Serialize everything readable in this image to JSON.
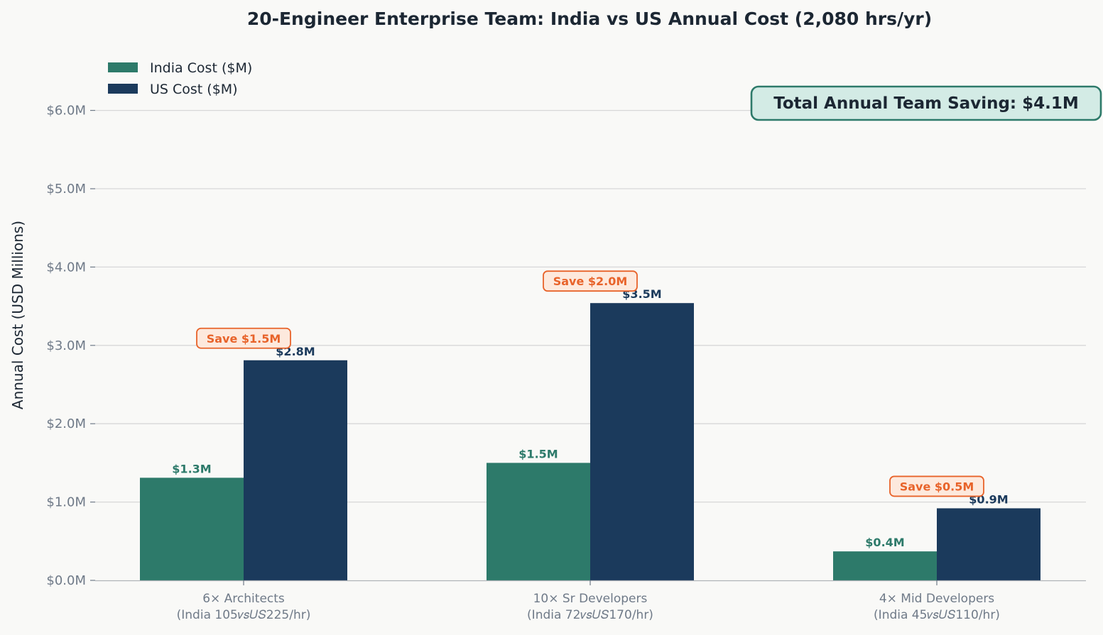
{
  "chart_data": {
    "type": "bar",
    "title": "20-Engineer Enterprise Team: India vs US Annual Cost (2,080 hrs/yr)",
    "ylabel": "Annual Cost (USD Millions)",
    "xlabel": "",
    "ylim": [
      0,
      6.5
    ],
    "yticks": [
      0,
      1,
      2,
      3,
      4,
      5,
      6
    ],
    "ytick_labels": [
      "$0.0M",
      "$1.0M",
      "$2.0M",
      "$3.0M",
      "$4.0M",
      "$5.0M",
      "$6.0M"
    ],
    "grid": "horizontal",
    "legend_position": "top-left",
    "categories": [
      [
        "6× Architects",
        "(India 105𝑣𝑠𝑈𝑆225/hr)"
      ],
      [
        "10× Sr Developers",
        "(India 72𝑣𝑠𝑈𝑆170/hr)"
      ],
      [
        "4× Mid Developers",
        "(India 45𝑣𝑠𝑈𝑆110/hr)"
      ]
    ],
    "series": [
      {
        "name": "India Cost ($M)",
        "color": "#2d7a6a",
        "values": [
          1.31,
          1.5,
          0.37
        ],
        "labels": [
          "$1.3M",
          "$1.5M",
          "$0.4M"
        ]
      },
      {
        "name": "US Cost ($M)",
        "color": "#1b3a5c",
        "values": [
          2.81,
          3.54,
          0.92
        ],
        "labels": [
          "$2.8M",
          "$3.5M",
          "$0.9M"
        ]
      }
    ],
    "savings_labels": [
      "Save $1.5M",
      "Save $2.0M",
      "Save $0.5M"
    ],
    "total_annotation": "Total Annual Team Saving: $4.1M",
    "colors": {
      "background": "#f9f9f7",
      "save_accent": "#e8632a",
      "save_fill": "#fde9dd",
      "total_border": "#2d7a6a",
      "total_fill": "#d3ebe5"
    }
  }
}
